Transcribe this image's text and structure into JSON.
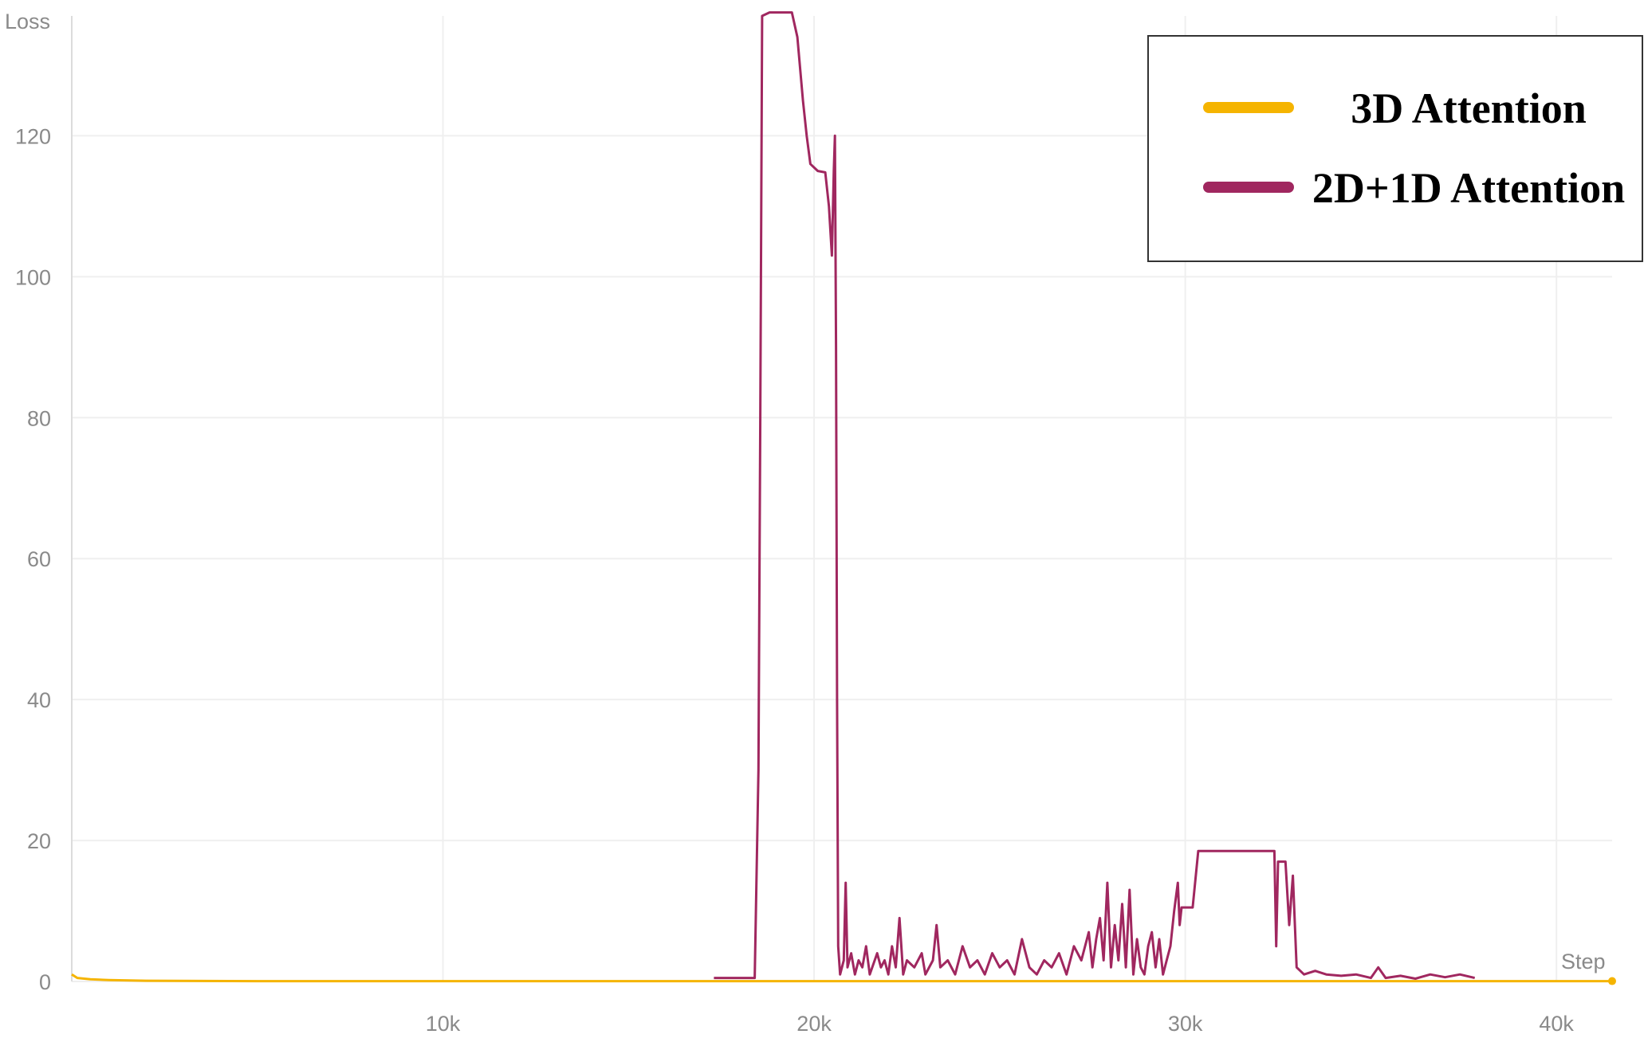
{
  "chart_data": {
    "type": "line",
    "xlabel": "Step",
    "ylabel": "Loss",
    "xlim": [
      0,
      41500
    ],
    "ylim": [
      0,
      137
    ],
    "x_ticks": [
      {
        "value": 10000,
        "label": "10k"
      },
      {
        "value": 20000,
        "label": "20k"
      },
      {
        "value": 30000,
        "label": "30k"
      },
      {
        "value": 40000,
        "label": "40k"
      }
    ],
    "y_ticks": [
      {
        "value": 0,
        "label": "0"
      },
      {
        "value": 20,
        "label": "20"
      },
      {
        "value": 40,
        "label": "40"
      },
      {
        "value": 60,
        "label": "60"
      },
      {
        "value": 80,
        "label": "80"
      },
      {
        "value": 100,
        "label": "100"
      },
      {
        "value": 120,
        "label": "120"
      }
    ],
    "grid": true,
    "legend_position": "top-right",
    "series": [
      {
        "name": "3D Attention",
        "color": "#f5b400",
        "points": [
          [
            0,
            1.0
          ],
          [
            150,
            0.5
          ],
          [
            500,
            0.3
          ],
          [
            1000,
            0.2
          ],
          [
            2000,
            0.1
          ],
          [
            5000,
            0.05
          ],
          [
            10000,
            0.05
          ],
          [
            20000,
            0.05
          ],
          [
            30000,
            0.05
          ],
          [
            40000,
            0.05
          ],
          [
            41500,
            0.05
          ]
        ]
      },
      {
        "name": "2D+1D Attention",
        "color": "#a0275f",
        "points": [
          [
            17300,
            0.5
          ],
          [
            18400,
            0.5
          ],
          [
            18500,
            30
          ],
          [
            18550,
            80
          ],
          [
            18600,
            137
          ],
          [
            18800,
            137.5
          ],
          [
            19400,
            137.5
          ],
          [
            19550,
            134
          ],
          [
            19700,
            125
          ],
          [
            19800,
            120
          ],
          [
            19900,
            116
          ],
          [
            20100,
            115
          ],
          [
            20300,
            114.8
          ],
          [
            20400,
            110
          ],
          [
            20480,
            103
          ],
          [
            20530,
            115
          ],
          [
            20560,
            120
          ],
          [
            20590,
            90
          ],
          [
            20620,
            40
          ],
          [
            20650,
            5
          ],
          [
            20700,
            1
          ],
          [
            20800,
            3
          ],
          [
            20850,
            14
          ],
          [
            20900,
            2
          ],
          [
            21000,
            4
          ],
          [
            21100,
            1
          ],
          [
            21200,
            3
          ],
          [
            21300,
            2
          ],
          [
            21400,
            5
          ],
          [
            21500,
            1
          ],
          [
            21700,
            4
          ],
          [
            21800,
            2
          ],
          [
            21900,
            3
          ],
          [
            22000,
            1
          ],
          [
            22100,
            5
          ],
          [
            22200,
            2
          ],
          [
            22300,
            9
          ],
          [
            22400,
            1
          ],
          [
            22500,
            3
          ],
          [
            22700,
            2
          ],
          [
            22900,
            4
          ],
          [
            23000,
            1
          ],
          [
            23200,
            3
          ],
          [
            23300,
            8
          ],
          [
            23400,
            2
          ],
          [
            23600,
            3
          ],
          [
            23800,
            1
          ],
          [
            24000,
            5
          ],
          [
            24200,
            2
          ],
          [
            24400,
            3
          ],
          [
            24600,
            1
          ],
          [
            24800,
            4
          ],
          [
            25000,
            2
          ],
          [
            25200,
            3
          ],
          [
            25400,
            1
          ],
          [
            25600,
            6
          ],
          [
            25800,
            2
          ],
          [
            26000,
            1
          ],
          [
            26200,
            3
          ],
          [
            26400,
            2
          ],
          [
            26600,
            4
          ],
          [
            26800,
            1
          ],
          [
            27000,
            5
          ],
          [
            27200,
            3
          ],
          [
            27400,
            7
          ],
          [
            27500,
            2
          ],
          [
            27600,
            6
          ],
          [
            27700,
            9
          ],
          [
            27800,
            3
          ],
          [
            27900,
            14
          ],
          [
            28000,
            2
          ],
          [
            28100,
            8
          ],
          [
            28200,
            3
          ],
          [
            28300,
            11
          ],
          [
            28400,
            2
          ],
          [
            28500,
            13
          ],
          [
            28600,
            1
          ],
          [
            28700,
            6
          ],
          [
            28800,
            2
          ],
          [
            28900,
            1
          ],
          [
            29000,
            5
          ],
          [
            29100,
            7
          ],
          [
            29200,
            2
          ],
          [
            29300,
            6
          ],
          [
            29400,
            1
          ],
          [
            29500,
            3
          ],
          [
            29600,
            5
          ],
          [
            29700,
            10
          ],
          [
            29800,
            14
          ],
          [
            29850,
            8
          ],
          [
            29900,
            10.5
          ],
          [
            30200,
            10.5
          ],
          [
            30350,
            18.5
          ],
          [
            32400,
            18.5
          ],
          [
            32450,
            5
          ],
          [
            32500,
            17
          ],
          [
            32700,
            17
          ],
          [
            32800,
            8
          ],
          [
            32900,
            15
          ],
          [
            33000,
            2
          ],
          [
            33200,
            1
          ],
          [
            33500,
            1.5
          ],
          [
            33800,
            1
          ],
          [
            34200,
            0.8
          ],
          [
            34600,
            1
          ],
          [
            35000,
            0.5
          ],
          [
            35200,
            2
          ],
          [
            35400,
            0.5
          ],
          [
            35800,
            0.8
          ],
          [
            36200,
            0.4
          ],
          [
            36600,
            1
          ],
          [
            37000,
            0.6
          ],
          [
            37400,
            1
          ],
          [
            37800,
            0.5
          ]
        ]
      }
    ]
  }
}
